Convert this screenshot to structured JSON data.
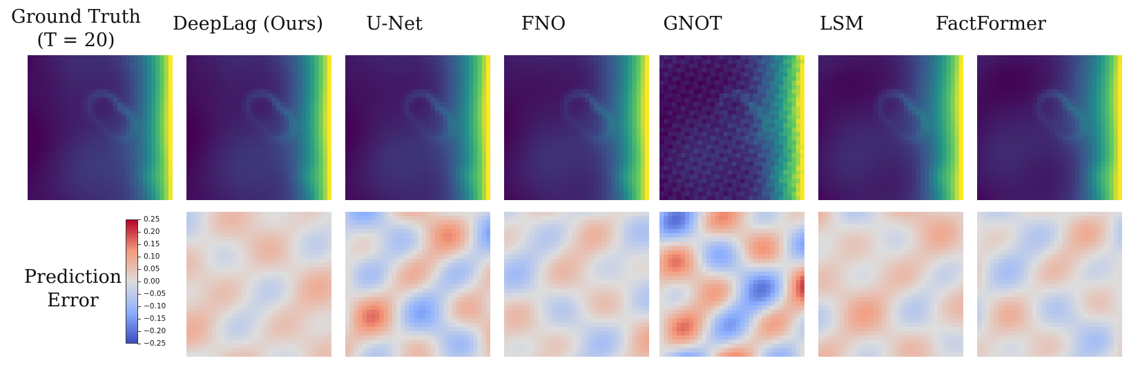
{
  "ground_truth_title_line1": "Ground Truth",
  "ground_truth_title_line2": "(T = 20)",
  "models": [
    "DeepLag (Ours)",
    "U-Net",
    "FNO",
    "GNOT",
    "LSM",
    "FactFormer"
  ],
  "row_label_line1": "Prediction",
  "row_label_line2": "Error",
  "colorbar_ticks": [
    "0.25",
    "0.20",
    "0.15",
    "0.10",
    "0.05",
    "0.00",
    "−0.05",
    "−0.10",
    "−0.15",
    "−0.20",
    "−0.25"
  ],
  "colormaps": {
    "field": [
      "#440154",
      "#3b528b",
      "#21918c",
      "#5ec962",
      "#fde725"
    ],
    "error": [
      "#3b4cc0",
      "#8db0fe",
      "#dddddd",
      "#f49a7b",
      "#b40426"
    ]
  },
  "error_magnitude": {
    "DeepLag (Ours)": 0.35,
    "U-Net": 0.7,
    "FNO": 0.45,
    "GNOT": 1.0,
    "LSM": 0.4,
    "FactFormer": 0.45
  }
}
